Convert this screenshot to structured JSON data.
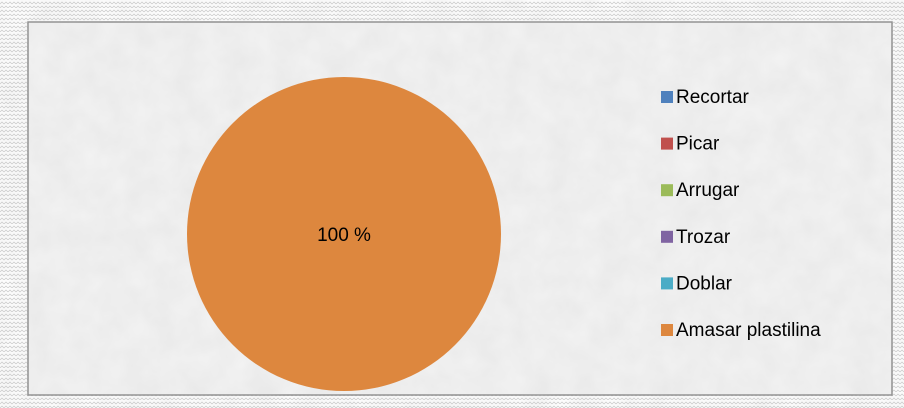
{
  "chart_data": {
    "type": "pie",
    "categories": [
      "Recortar",
      "Picar",
      "Arrugar",
      "Trozar",
      "Doblar",
      "Amasar plastilina"
    ],
    "values": [
      0,
      0,
      0,
      0,
      0,
      100
    ],
    "value_labels": [
      null,
      null,
      null,
      null,
      null,
      "100 %"
    ],
    "colors": [
      "#4f81bd",
      "#c0504d",
      "#9bbb59",
      "#8064a2",
      "#4bacc6",
      "#dd873e"
    ],
    "legend": "right"
  }
}
